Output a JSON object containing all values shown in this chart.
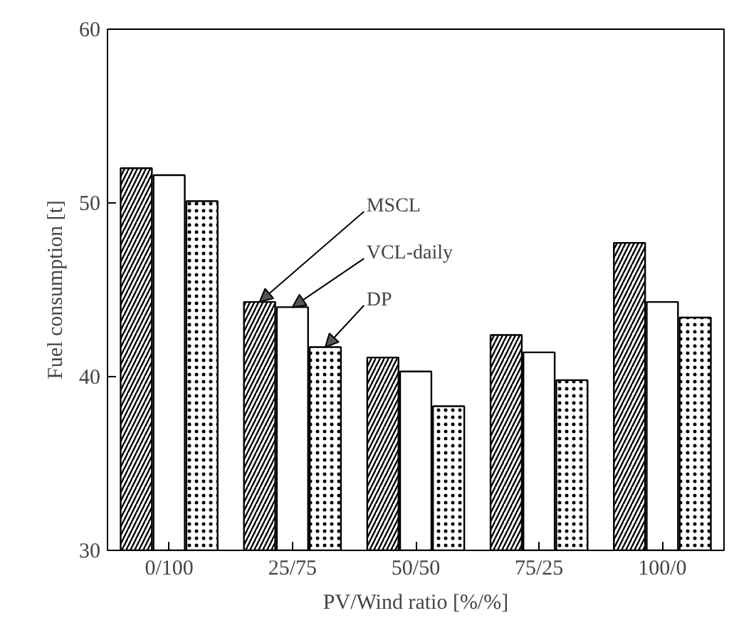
{
  "chart_data": {
    "type": "bar",
    "xlabel": "PV/Wind ratio [%/%]",
    "ylabel": "Fuel consumption [t]",
    "categories": [
      "0/100",
      "25/75",
      "50/50",
      "75/25",
      "100/0"
    ],
    "series": [
      {
        "name": "MSCL",
        "color": "#ffffff",
        "values": [
          52.0,
          44.3,
          41.1,
          42.4,
          47.7
        ]
      },
      {
        "name": "VCL-daily",
        "color": "#ffffff",
        "values": [
          51.6,
          44.0,
          40.3,
          41.4,
          44.3
        ]
      },
      {
        "name": "DP",
        "color": "#ffffff",
        "values": [
          50.1,
          41.7,
          38.3,
          39.8,
          43.4
        ]
      }
    ],
    "ylim": [
      30,
      60
    ],
    "yticks": [
      30,
      40,
      50,
      60
    ],
    "grid": false,
    "legend": false
  }
}
